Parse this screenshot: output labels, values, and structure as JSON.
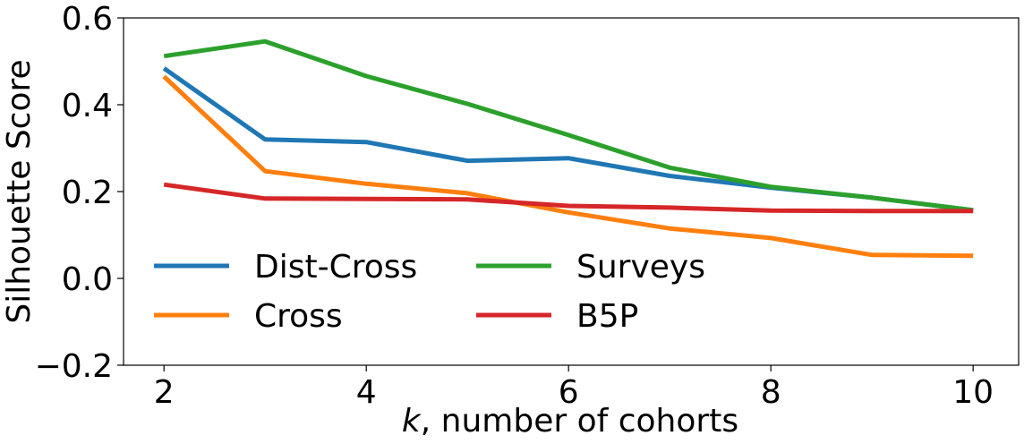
{
  "chart_data": {
    "type": "line",
    "title": "",
    "xlabel_var": "k",
    "xlabel_rest": ", number of cohorts",
    "ylabel": "Silhouette Score",
    "xlim": [
      1.6,
      10.45
    ],
    "ylim": [
      -0.2,
      0.6
    ],
    "xticks": [
      2,
      4,
      6,
      8,
      10
    ],
    "yticks": [
      -0.2,
      0.0,
      0.2,
      0.4,
      0.6
    ],
    "ytick_labels": [
      "−0.2",
      "0.0",
      "0.2",
      "0.4",
      "0.6"
    ],
    "xtick_labels": [
      "2",
      "4",
      "6",
      "8",
      "10"
    ],
    "grid": false,
    "legend_position": "lower-left",
    "legend_columns": 2,
    "x": [
      2,
      3,
      4,
      5,
      6,
      7,
      8,
      9,
      10
    ],
    "series": [
      {
        "name": "Dist-Cross",
        "color": "#1f77b4",
        "values": [
          0.484,
          0.32,
          0.314,
          0.271,
          0.277,
          0.236,
          0.209,
          0.186,
          0.157
        ]
      },
      {
        "name": "Cross",
        "color": "#ff7f0e",
        "values": [
          0.465,
          0.247,
          0.218,
          0.196,
          0.152,
          0.115,
          0.093,
          0.054,
          0.052
        ]
      },
      {
        "name": "Surveys",
        "color": "#2ca02c",
        "values": [
          0.512,
          0.546,
          0.466,
          0.402,
          0.33,
          0.255,
          0.211,
          0.186,
          0.157
        ]
      },
      {
        "name": "B5P",
        "color": "#d62728",
        "values": [
          0.216,
          0.184,
          0.183,
          0.182,
          0.167,
          0.163,
          0.156,
          0.155,
          0.155
        ]
      }
    ]
  }
}
